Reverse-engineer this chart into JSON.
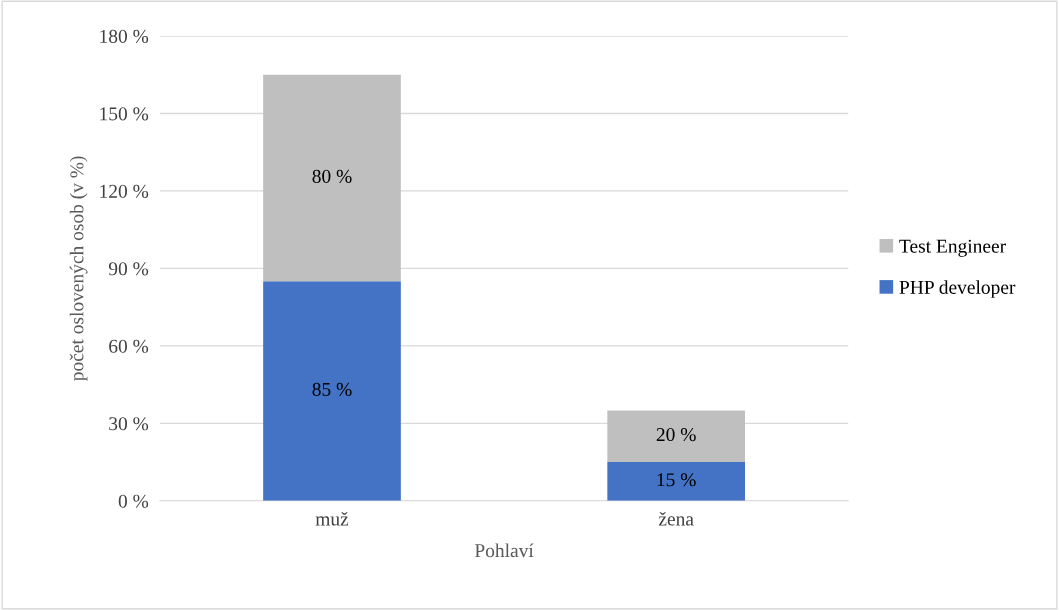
{
  "chart_data": {
    "type": "bar",
    "stacked": true,
    "xlabel": "Pohlaví",
    "ylabel": "počet oslovených osob (v %)",
    "categories": [
      "muž",
      "žena"
    ],
    "series": [
      {
        "name": "PHP developer",
        "color": "#4472c4",
        "values": [
          85,
          15
        ],
        "value_labels": [
          "85 %",
          "15 %"
        ]
      },
      {
        "name": "Test Engineer",
        "color": "#bfbfbf",
        "values": [
          80,
          20
        ],
        "value_labels": [
          "80 %",
          "20 %"
        ]
      }
    ],
    "ylim": [
      0,
      180
    ],
    "yticks": [
      {
        "value": 0,
        "label": "0 %"
      },
      {
        "value": 30,
        "label": "30 %"
      },
      {
        "value": 60,
        "label": "60 %"
      },
      {
        "value": 90,
        "label": "90 %"
      },
      {
        "value": 120,
        "label": "120 %"
      },
      {
        "value": 150,
        "label": "150 %"
      },
      {
        "value": 180,
        "label": "180 %"
      }
    ],
    "grid": "y",
    "legend": "right"
  }
}
